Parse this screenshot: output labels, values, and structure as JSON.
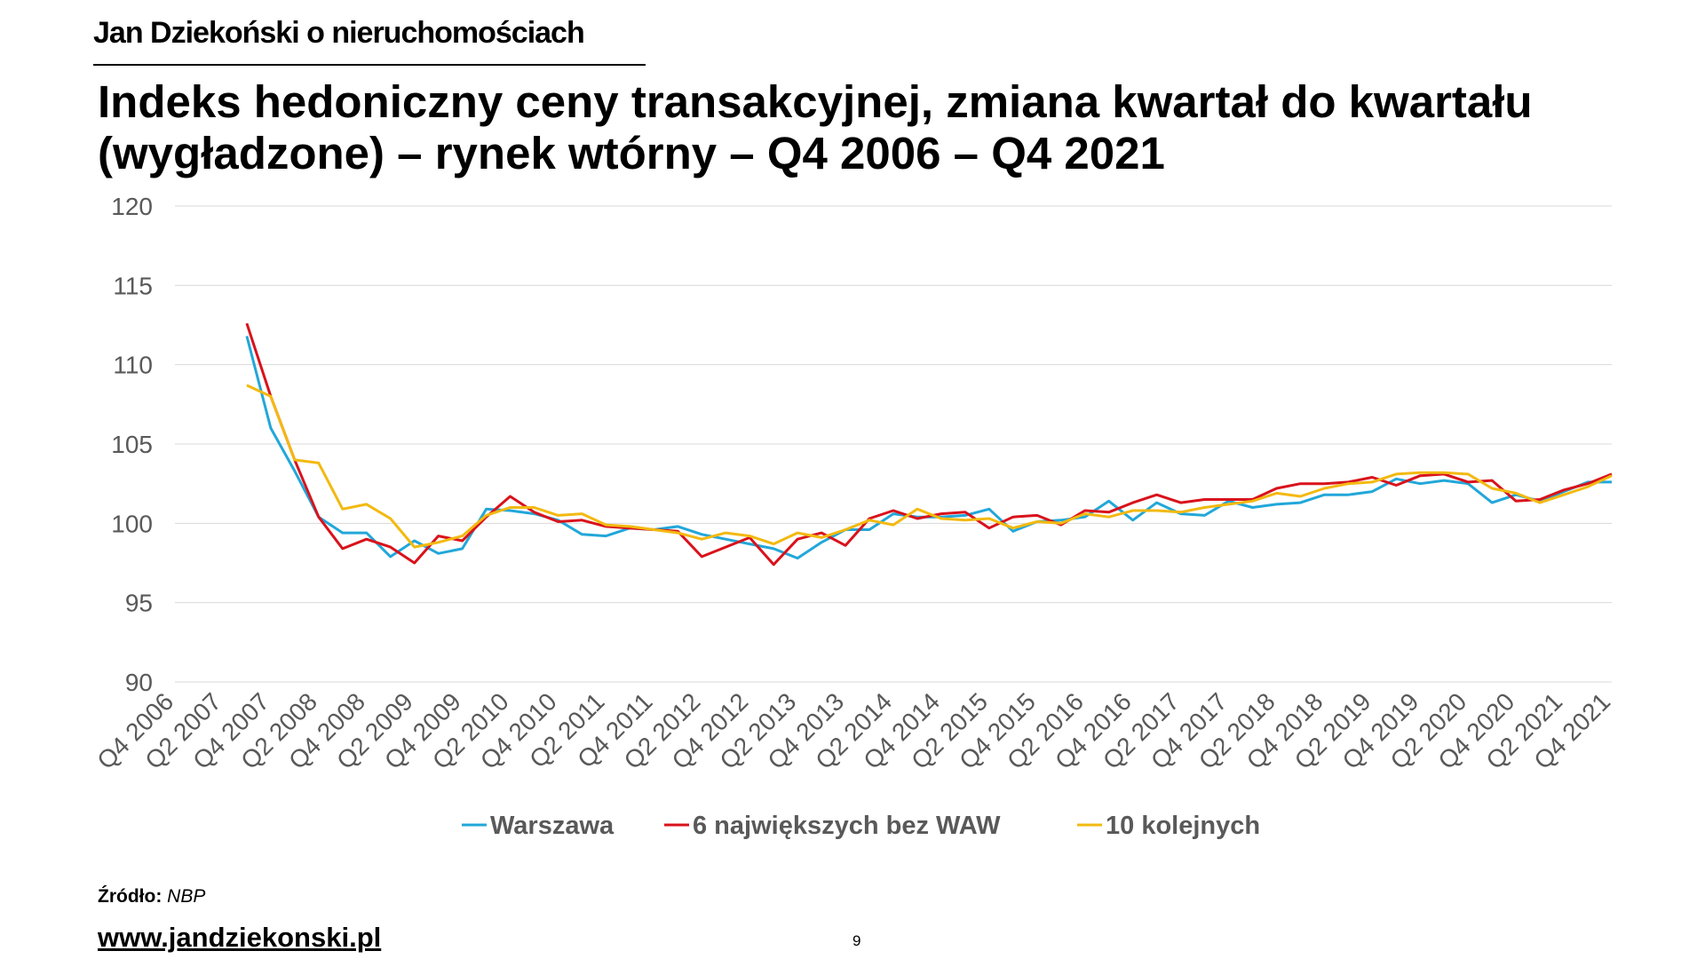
{
  "brand": "Jan Dziekoński o nieruchomościach",
  "title": "Indeks hedoniczny ceny transakcyjnej, zmiana kwartał do kwartału (wygładzone) – rynek wtórny – Q4 2006 – Q4 2021",
  "source": {
    "label": "Źródło:",
    "value": "NBP"
  },
  "website": "www.jandziekonski.pl",
  "page_number": "9",
  "colors": {
    "series": [
      "#22a7d9",
      "#d9121b",
      "#f3b910"
    ],
    "grid": "#d9d9d9",
    "tick_text": "#595959"
  },
  "chart_data": {
    "type": "line",
    "title": "",
    "xlabel": "",
    "ylabel": "",
    "ylim": [
      90,
      120
    ],
    "yticks": [
      90,
      95,
      100,
      105,
      110,
      115,
      120
    ],
    "grid": true,
    "legend_position": "bottom",
    "categories": [
      "Q4 2006",
      "Q1 2007",
      "Q2 2007",
      "Q3 2007",
      "Q4 2007",
      "Q1 2008",
      "Q2 2008",
      "Q3 2008",
      "Q4 2008",
      "Q1 2009",
      "Q2 2009",
      "Q3 2009",
      "Q4 2009",
      "Q1 2010",
      "Q2 2010",
      "Q3 2010",
      "Q4 2010",
      "Q1 2011",
      "Q2 2011",
      "Q3 2011",
      "Q4 2011",
      "Q1 2012",
      "Q2 2012",
      "Q3 2012",
      "Q4 2012",
      "Q1 2013",
      "Q2 2013",
      "Q3 2013",
      "Q4 2013",
      "Q1 2014",
      "Q2 2014",
      "Q3 2014",
      "Q4 2014",
      "Q1 2015",
      "Q2 2015",
      "Q3 2015",
      "Q4 2015",
      "Q1 2016",
      "Q2 2016",
      "Q3 2016",
      "Q4 2016",
      "Q1 2017",
      "Q2 2017",
      "Q3 2017",
      "Q4 2017",
      "Q1 2018",
      "Q2 2018",
      "Q3 2018",
      "Q4 2018",
      "Q1 2019",
      "Q2 2019",
      "Q3 2019",
      "Q4 2019",
      "Q1 2020",
      "Q2 2020",
      "Q3 2020",
      "Q4 2020",
      "Q1 2021",
      "Q2 2021",
      "Q3 2021",
      "Q4 2021"
    ],
    "tick_labels": [
      "Q4 2006",
      "Q2 2007",
      "Q4 2007",
      "Q2 2008",
      "Q4 2008",
      "Q2 2009",
      "Q4 2009",
      "Q2 2010",
      "Q4 2010",
      "Q2 2011",
      "Q4 2011",
      "Q2 2012",
      "Q4 2012",
      "Q2 2013",
      "Q4 2013",
      "Q2 2014",
      "Q4 2014",
      "Q2 2015",
      "Q4 2015",
      "Q2 2016",
      "Q4 2016",
      "Q2 2017",
      "Q4 2017",
      "Q2 2018",
      "Q4 2018",
      "Q2 2019",
      "Q4 2019",
      "Q2 2020",
      "Q4 2020",
      "Q2 2021",
      "Q4 2021"
    ],
    "series": [
      {
        "name": "Warszawa",
        "values": [
          null,
          null,
          null,
          111.8,
          106.0,
          103.3,
          100.4,
          99.4,
          99.4,
          97.9,
          98.9,
          98.1,
          98.4,
          100.9,
          100.8,
          100.6,
          100.2,
          99.3,
          99.2,
          99.7,
          99.6,
          99.8,
          99.3,
          99.0,
          98.7,
          98.4,
          97.8,
          98.8,
          99.6,
          99.6,
          100.6,
          100.4,
          100.4,
          100.5,
          100.9,
          99.5,
          100.1,
          100.2,
          100.4,
          101.4,
          100.2,
          101.3,
          100.6,
          100.5,
          101.4,
          101.0,
          101.2,
          101.3,
          101.8,
          101.8,
          102.0,
          102.8,
          102.5,
          102.7,
          102.5,
          101.3,
          101.8,
          101.4,
          102.0,
          102.6,
          102.6
        ]
      },
      {
        "name": "6 największych bez WAW",
        "values": [
          null,
          null,
          null,
          112.6,
          108.0,
          104.0,
          100.4,
          98.4,
          99.0,
          98.5,
          97.5,
          99.2,
          98.9,
          100.4,
          101.7,
          100.7,
          100.1,
          100.2,
          99.8,
          99.7,
          99.6,
          99.5,
          97.9,
          98.5,
          99.1,
          97.4,
          99.0,
          99.4,
          98.6,
          100.3,
          100.8,
          100.3,
          100.6,
          100.7,
          99.7,
          100.4,
          100.5,
          99.9,
          100.8,
          100.7,
          101.3,
          101.8,
          101.3,
          101.5,
          101.5,
          101.5,
          102.2,
          102.5,
          102.5,
          102.6,
          102.9,
          102.4,
          103.0,
          103.1,
          102.6,
          102.7,
          101.4,
          101.5,
          102.1,
          102.5,
          103.1
        ]
      },
      {
        "name": "10 kolejnych",
        "values": [
          null,
          null,
          null,
          108.7,
          108.0,
          104.0,
          103.8,
          100.9,
          101.2,
          100.3,
          98.5,
          98.8,
          99.2,
          100.5,
          101.0,
          101.0,
          100.5,
          100.6,
          99.9,
          99.8,
          99.6,
          99.4,
          99.0,
          99.4,
          99.2,
          98.7,
          99.4,
          99.1,
          99.6,
          100.2,
          99.9,
          100.9,
          100.3,
          100.2,
          100.3,
          99.7,
          100.1,
          100.0,
          100.6,
          100.4,
          100.8,
          100.8,
          100.7,
          101.0,
          101.2,
          101.4,
          101.9,
          101.7,
          102.2,
          102.5,
          102.6,
          103.1,
          103.2,
          103.2,
          103.1,
          102.2,
          101.9,
          101.3,
          101.8,
          102.3,
          103.0
        ]
      }
    ]
  }
}
